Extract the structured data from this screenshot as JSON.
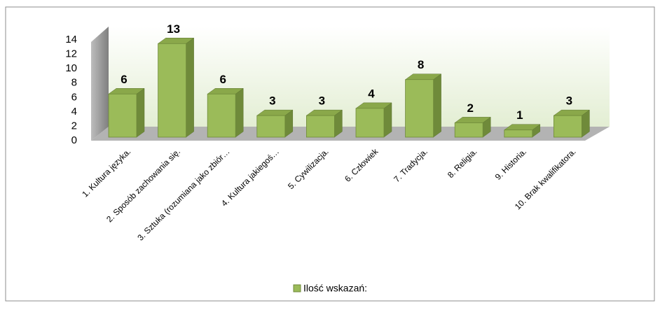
{
  "chart_data": {
    "type": "bar3d",
    "categories": [
      "1. Kultura języka.",
      "2. Sposób zachowania się.",
      "3. Sztuka (rozumiana jako zbiór…",
      "4. Kultura jakiegoś…",
      "5. Cywilizacja.",
      "6. Człowiek",
      "7. Tradycja.",
      "8. Religia.",
      "9. Historia.",
      "10. Brak kwalifikatora."
    ],
    "series": [
      {
        "name": "Ilość wskazań:",
        "color": "#9bbb59",
        "values": [
          6,
          13,
          6,
          3,
          3,
          4,
          8,
          2,
          1,
          3
        ]
      }
    ],
    "ylim": [
      0,
      14
    ],
    "yticks": [
      0,
      2,
      4,
      6,
      8,
      10,
      12,
      14
    ],
    "grid": false,
    "legend": "bottom"
  }
}
